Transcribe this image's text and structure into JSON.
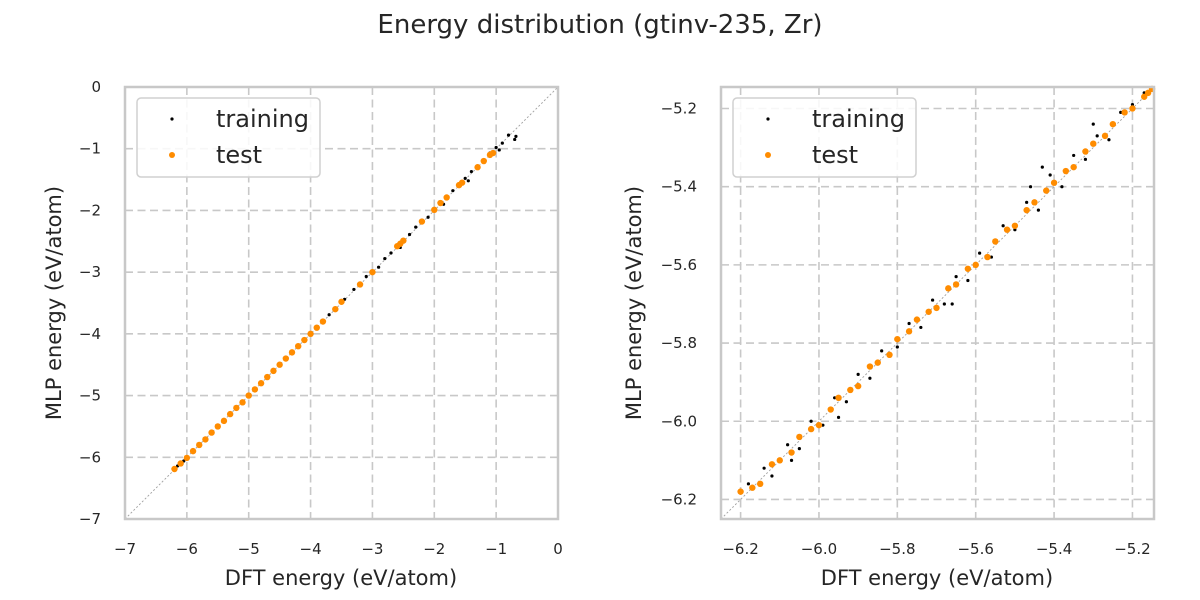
{
  "title": "Energy distribution (gtinv-235, Zr)",
  "colors": {
    "training": "#000000",
    "test": "#ff8c00"
  },
  "chart_data": [
    {
      "type": "scatter",
      "xlabel": "DFT energy (eV/atom)",
      "ylabel": "MLP energy (eV/atom)",
      "xlim": [
        -7,
        0
      ],
      "ylim": [
        -7,
        0
      ],
      "xticks": [
        -7,
        -6,
        -5,
        -4,
        -3,
        -2,
        -1,
        0
      ],
      "yticks": [
        -7,
        -6,
        -5,
        -4,
        -3,
        -2,
        -1,
        0
      ],
      "xtick_labels": [
        "−7",
        "−6",
        "−5",
        "−4",
        "−3",
        "−2",
        "−1",
        "0"
      ],
      "ytick_labels": [
        "−7",
        "−6",
        "−5",
        "−4",
        "−3",
        "−2",
        "−1",
        "0"
      ],
      "grid": true,
      "legend": {
        "position": "upper-left",
        "entries": [
          "training",
          "test"
        ]
      },
      "reference_line": "y = x",
      "series": [
        {
          "name": "training",
          "color": "#000000",
          "points": [
            [
              -6.15,
              -6.14
            ],
            [
              -6.05,
              -6.06
            ],
            [
              -5.9,
              -5.91
            ],
            [
              -5.7,
              -5.69
            ],
            [
              -5.5,
              -5.51
            ],
            [
              -5.3,
              -5.31
            ],
            [
              -5.1,
              -5.09
            ],
            [
              -4.9,
              -4.91
            ],
            [
              -4.7,
              -4.71
            ],
            [
              -4.5,
              -4.49
            ],
            [
              -4.3,
              -4.31
            ],
            [
              -4.1,
              -4.09
            ],
            [
              -3.9,
              -3.91
            ],
            [
              -3.7,
              -3.69
            ],
            [
              -3.6,
              -3.58
            ],
            [
              -3.45,
              -3.44
            ],
            [
              -3.3,
              -3.28
            ],
            [
              -3.2,
              -3.21
            ],
            [
              -3.1,
              -3.07
            ],
            [
              -3.0,
              -2.98
            ],
            [
              -2.9,
              -2.92
            ],
            [
              -2.8,
              -2.78
            ],
            [
              -2.7,
              -2.69
            ],
            [
              -2.6,
              -2.58
            ],
            [
              -2.4,
              -2.39
            ],
            [
              -2.3,
              -2.27
            ],
            [
              -2.2,
              -2.18
            ],
            [
              -2.1,
              -2.11
            ],
            [
              -2.0,
              -1.98
            ],
            [
              -1.9,
              -1.89
            ],
            [
              -1.8,
              -1.77
            ],
            [
              -1.7,
              -1.68
            ],
            [
              -1.6,
              -1.58
            ],
            [
              -1.5,
              -1.48
            ],
            [
              -1.4,
              -1.37
            ],
            [
              -1.3,
              -1.28
            ],
            [
              -1.2,
              -1.18
            ],
            [
              -1.1,
              -1.07
            ],
            [
              -1.0,
              -0.98
            ],
            [
              -0.9,
              -0.91
            ],
            [
              -0.8,
              -0.78
            ],
            [
              -0.7,
              -0.85
            ],
            [
              -0.68,
              -0.8
            ],
            [
              -0.95,
              -1.02
            ],
            [
              -1.45,
              -1.52
            ],
            [
              -1.85,
              -1.9
            ],
            [
              -2.55,
              -2.6
            ],
            [
              -3.5,
              -3.47
            ]
          ]
        },
        {
          "name": "test",
          "color": "#ff8c00",
          "points": [
            [
              -6.2,
              -6.19
            ],
            [
              -6.1,
              -6.1
            ],
            [
              -6.0,
              -6.01
            ],
            [
              -5.9,
              -5.9
            ],
            [
              -5.8,
              -5.8
            ],
            [
              -5.7,
              -5.71
            ],
            [
              -5.6,
              -5.6
            ],
            [
              -5.5,
              -5.5
            ],
            [
              -5.4,
              -5.41
            ],
            [
              -5.3,
              -5.3
            ],
            [
              -5.2,
              -5.2
            ],
            [
              -5.1,
              -5.11
            ],
            [
              -5.0,
              -5.0
            ],
            [
              -4.9,
              -4.9
            ],
            [
              -4.8,
              -4.8
            ],
            [
              -4.7,
              -4.7
            ],
            [
              -4.6,
              -4.6
            ],
            [
              -4.5,
              -4.5
            ],
            [
              -4.4,
              -4.4
            ],
            [
              -4.3,
              -4.3
            ],
            [
              -4.2,
              -4.2
            ],
            [
              -4.1,
              -4.1
            ],
            [
              -4.0,
              -4.0
            ],
            [
              -3.9,
              -3.9
            ],
            [
              -3.8,
              -3.8
            ],
            [
              -3.6,
              -3.6
            ],
            [
              -3.5,
              -3.48
            ],
            [
              -3.2,
              -3.2
            ],
            [
              -3.0,
              -3.0
            ],
            [
              -2.6,
              -2.58
            ],
            [
              -2.55,
              -2.54
            ],
            [
              -2.5,
              -2.49
            ],
            [
              -2.2,
              -2.18
            ],
            [
              -2.0,
              -1.99
            ],
            [
              -1.9,
              -1.88
            ],
            [
              -1.8,
              -1.79
            ],
            [
              -1.6,
              -1.59
            ],
            [
              -1.55,
              -1.55
            ],
            [
              -1.3,
              -1.3
            ],
            [
              -1.2,
              -1.2
            ],
            [
              -1.1,
              -1.1
            ],
            [
              -1.05,
              -1.07
            ]
          ]
        }
      ]
    },
    {
      "type": "scatter",
      "xlabel": "DFT energy (eV/atom)",
      "ylabel": "MLP energy (eV/atom)",
      "xlim": [
        -6.25,
        -5.145
      ],
      "ylim": [
        -6.25,
        -5.145
      ],
      "xticks": [
        -6.2,
        -6.0,
        -5.8,
        -5.6,
        -5.4,
        -5.2
      ],
      "yticks": [
        -6.2,
        -6.0,
        -5.8,
        -5.6,
        -5.4,
        -5.2
      ],
      "xtick_labels": [
        "−6.2",
        "−6.0",
        "−5.8",
        "−5.6",
        "−5.4",
        "−5.2"
      ],
      "ytick_labels": [
        "−6.2",
        "−6.0",
        "−5.8",
        "−5.6",
        "−5.4",
        "−5.2"
      ],
      "grid": true,
      "legend": {
        "position": "upper-left",
        "entries": [
          "training",
          "test"
        ]
      },
      "reference_line": "y = x",
      "series": [
        {
          "name": "training",
          "color": "#000000",
          "points": [
            [
              -6.18,
              -6.16
            ],
            [
              -6.14,
              -6.12
            ],
            [
              -6.12,
              -6.14
            ],
            [
              -6.08,
              -6.06
            ],
            [
              -6.05,
              -6.07
            ],
            [
              -6.02,
              -6.0
            ],
            [
              -5.99,
              -6.01
            ],
            [
              -5.96,
              -5.94
            ],
            [
              -5.93,
              -5.95
            ],
            [
              -5.9,
              -5.88
            ],
            [
              -5.87,
              -5.89
            ],
            [
              -5.84,
              -5.82
            ],
            [
              -5.8,
              -5.81
            ],
            [
              -5.77,
              -5.75
            ],
            [
              -5.74,
              -5.76
            ],
            [
              -5.71,
              -5.69
            ],
            [
              -5.68,
              -5.7
            ],
            [
              -5.65,
              -5.63
            ],
            [
              -5.62,
              -5.64
            ],
            [
              -5.59,
              -5.57
            ],
            [
              -5.56,
              -5.58
            ],
            [
              -5.53,
              -5.5
            ],
            [
              -5.5,
              -5.51
            ],
            [
              -5.47,
              -5.44
            ],
            [
              -5.44,
              -5.46
            ],
            [
              -5.41,
              -5.37
            ],
            [
              -5.38,
              -5.4
            ],
            [
              -5.35,
              -5.32
            ],
            [
              -5.32,
              -5.33
            ],
            [
              -5.29,
              -5.27
            ],
            [
              -5.26,
              -5.28
            ],
            [
              -5.23,
              -5.21
            ],
            [
              -5.2,
              -5.19
            ],
            [
              -5.17,
              -5.16
            ],
            [
              -5.43,
              -5.35
            ],
            [
              -5.46,
              -5.4
            ],
            [
              -5.66,
              -5.7
            ],
            [
              -5.95,
              -5.99
            ],
            [
              -6.07,
              -6.1
            ],
            [
              -5.3,
              -5.24
            ]
          ]
        },
        {
          "name": "test",
          "color": "#ff8c00",
          "points": [
            [
              -6.2,
              -6.18
            ],
            [
              -6.17,
              -6.17
            ],
            [
              -6.15,
              -6.16
            ],
            [
              -6.12,
              -6.11
            ],
            [
              -6.1,
              -6.1
            ],
            [
              -6.07,
              -6.08
            ],
            [
              -6.05,
              -6.04
            ],
            [
              -6.02,
              -6.02
            ],
            [
              -6.0,
              -6.01
            ],
            [
              -5.97,
              -5.97
            ],
            [
              -5.95,
              -5.94
            ],
            [
              -5.92,
              -5.92
            ],
            [
              -5.9,
              -5.91
            ],
            [
              -5.87,
              -5.86
            ],
            [
              -5.85,
              -5.85
            ],
            [
              -5.82,
              -5.83
            ],
            [
              -5.8,
              -5.79
            ],
            [
              -5.77,
              -5.77
            ],
            [
              -5.75,
              -5.74
            ],
            [
              -5.72,
              -5.72
            ],
            [
              -5.7,
              -5.71
            ],
            [
              -5.67,
              -5.66
            ],
            [
              -5.65,
              -5.65
            ],
            [
              -5.62,
              -5.61
            ],
            [
              -5.6,
              -5.6
            ],
            [
              -5.57,
              -5.58
            ],
            [
              -5.55,
              -5.54
            ],
            [
              -5.52,
              -5.51
            ],
            [
              -5.5,
              -5.5
            ],
            [
              -5.47,
              -5.46
            ],
            [
              -5.45,
              -5.44
            ],
            [
              -5.42,
              -5.41
            ],
            [
              -5.4,
              -5.39
            ],
            [
              -5.37,
              -5.36
            ],
            [
              -5.35,
              -5.35
            ],
            [
              -5.32,
              -5.31
            ],
            [
              -5.3,
              -5.29
            ],
            [
              -5.27,
              -5.27
            ],
            [
              -5.25,
              -5.24
            ],
            [
              -5.22,
              -5.21
            ],
            [
              -5.2,
              -5.2
            ],
            [
              -5.17,
              -5.17
            ],
            [
              -5.16,
              -5.16
            ],
            [
              -5.15,
              -5.15
            ]
          ]
        }
      ]
    }
  ]
}
